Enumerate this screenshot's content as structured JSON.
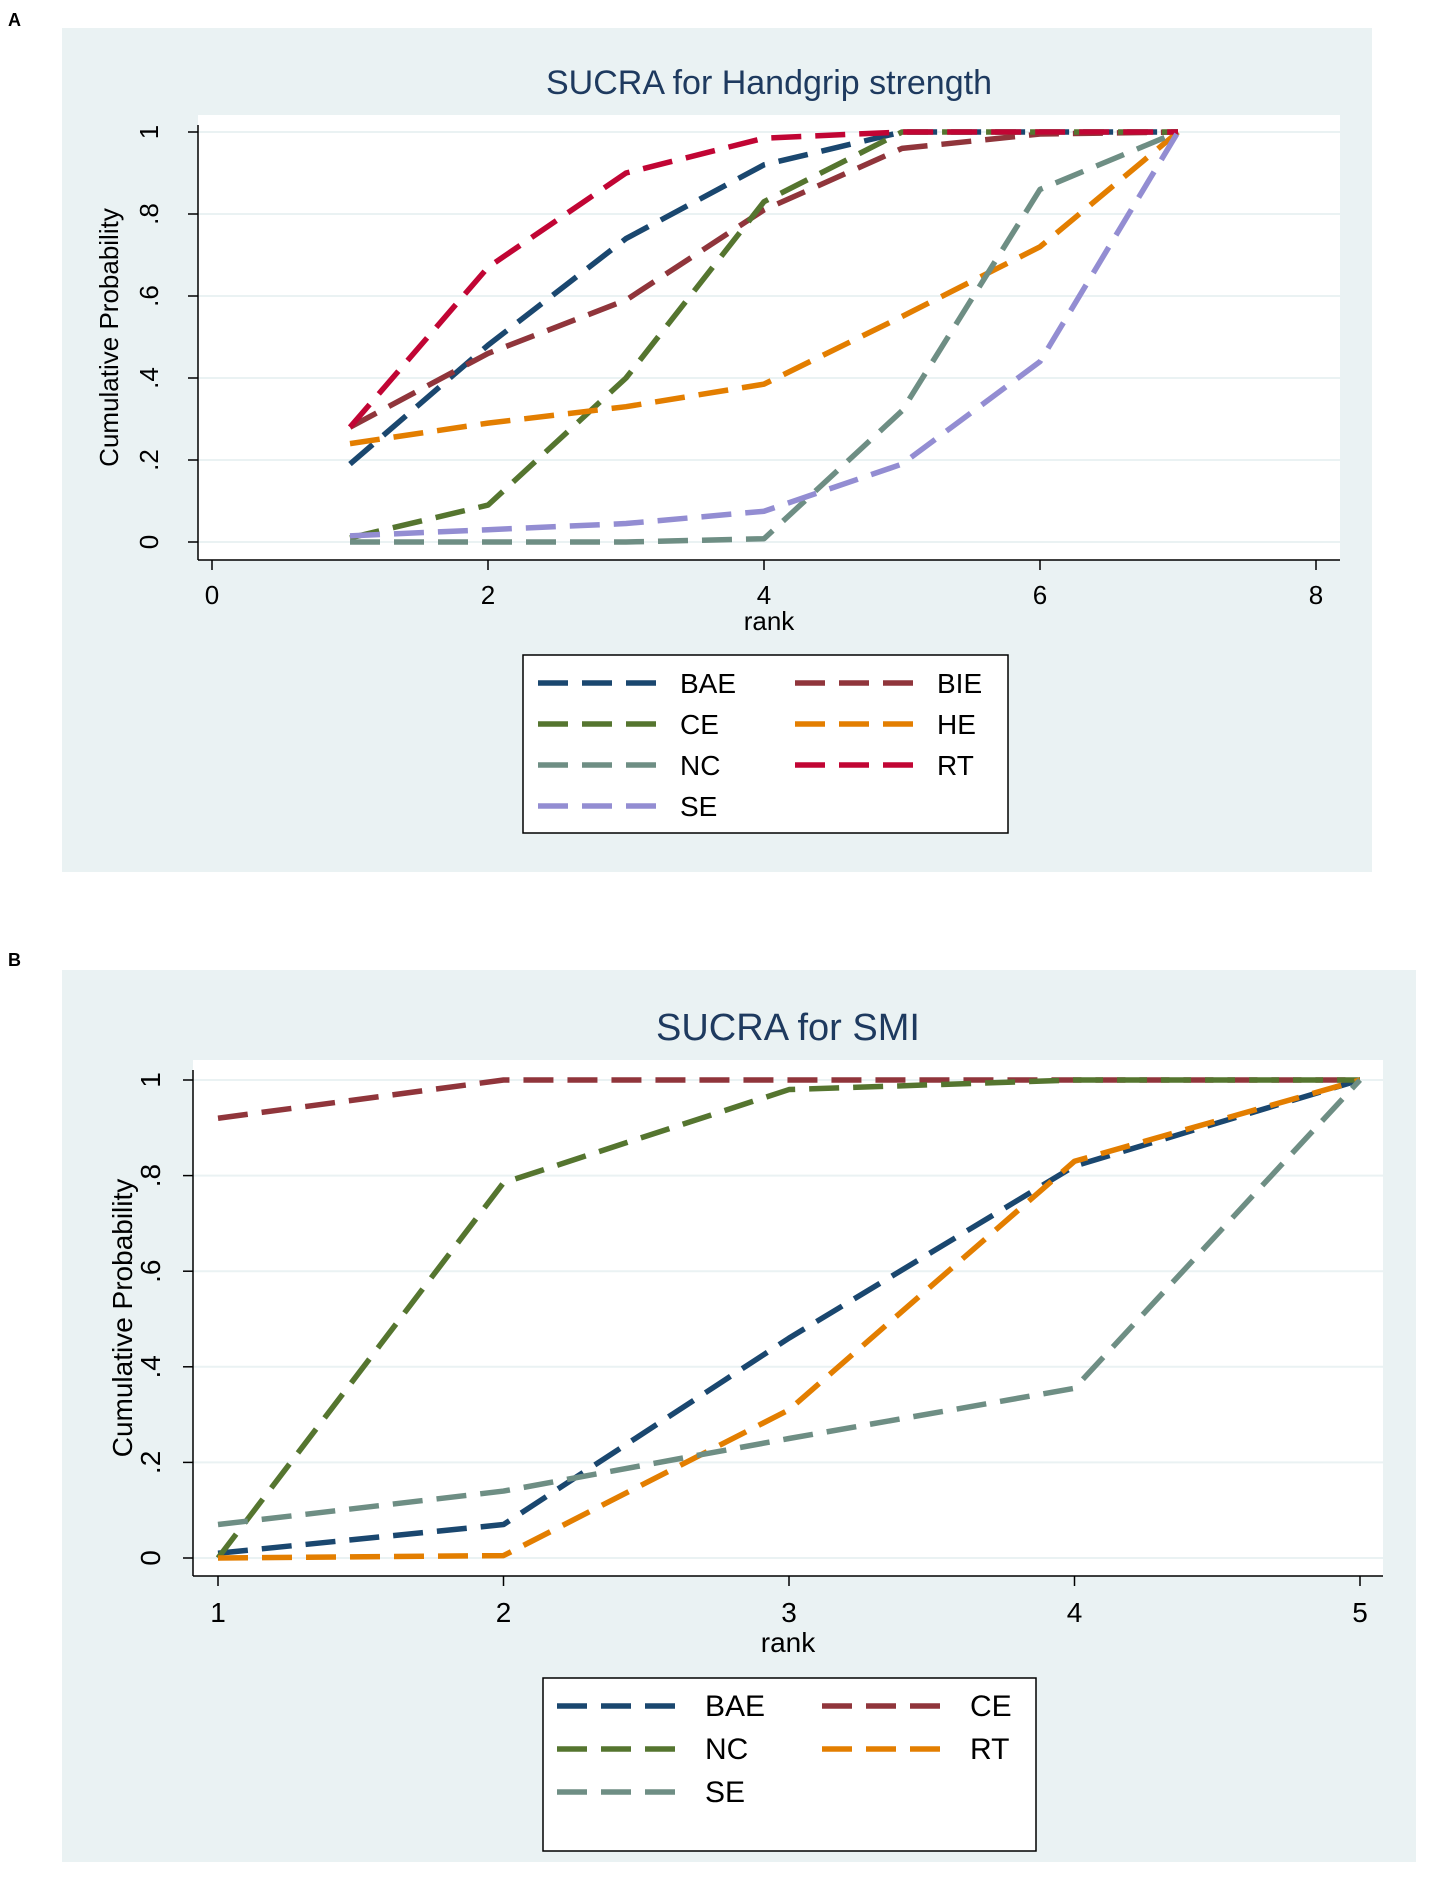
{
  "panels": [
    {
      "letter": "A"
    },
    {
      "letter": "B"
    }
  ],
  "chart_data": [
    {
      "type": "line",
      "title": "SUCRA for Handgrip strength",
      "xlabel": "rank",
      "ylabel": "Cumulative Probability",
      "xlim": [
        0,
        8
      ],
      "ylim": [
        0,
        1
      ],
      "xticks": [
        0,
        2,
        4,
        6,
        8
      ],
      "xtick_labels": [
        "0",
        "2",
        "4",
        "6",
        "8"
      ],
      "yticks": [
        0,
        0.2,
        0.4,
        0.6,
        0.8,
        1
      ],
      "ytick_labels": [
        "0",
        ".2",
        ".4",
        ".6",
        ".8",
        "1"
      ],
      "grid": true,
      "legend_position": "bottom",
      "x": [
        1,
        2,
        3,
        4,
        5,
        6,
        7
      ],
      "series": [
        {
          "name": "BAE",
          "color": "#1a476f",
          "values": [
            0.19,
            0.48,
            0.74,
            0.92,
            1.0,
            1.0,
            1.0
          ]
        },
        {
          "name": "BIE",
          "color": "#90353b",
          "values": [
            0.28,
            0.46,
            0.59,
            0.81,
            0.96,
            0.995,
            1.0
          ]
        },
        {
          "name": "CE",
          "color": "#55752f",
          "values": [
            0.01,
            0.09,
            0.4,
            0.83,
            1.0,
            1.0,
            1.0
          ]
        },
        {
          "name": "HE",
          "color": "#e37e00",
          "values": [
            0.24,
            0.29,
            0.33,
            0.385,
            0.55,
            0.72,
            1.0
          ]
        },
        {
          "name": "NC",
          "color": "#6e8e84",
          "values": [
            0.0,
            0.0,
            0.0,
            0.008,
            0.32,
            0.86,
            1.0
          ]
        },
        {
          "name": "RT",
          "color": "#c10534",
          "values": [
            0.28,
            0.67,
            0.9,
            0.985,
            1.0,
            1.0,
            1.0
          ]
        },
        {
          "name": "SE",
          "color": "#938dd2",
          "values": [
            0.015,
            0.03,
            0.045,
            0.075,
            0.19,
            0.44,
            1.0
          ]
        }
      ]
    },
    {
      "type": "line",
      "title": "SUCRA for SMI",
      "xlabel": "rank",
      "ylabel": "Cumulative Probability",
      "xlim": [
        1,
        5
      ],
      "ylim": [
        0,
        1
      ],
      "xticks": [
        1,
        2,
        3,
        4,
        5
      ],
      "xtick_labels": [
        "1",
        "2",
        "3",
        "4",
        "5"
      ],
      "yticks": [
        0,
        0.2,
        0.4,
        0.6,
        0.8,
        1
      ],
      "ytick_labels": [
        "0",
        ".2",
        ".4",
        ".6",
        ".8",
        "1"
      ],
      "grid": true,
      "legend_position": "bottom",
      "x": [
        1,
        2,
        3,
        4,
        5
      ],
      "series": [
        {
          "name": "BAE",
          "color": "#1a476f",
          "values": [
            0.01,
            0.07,
            0.46,
            0.82,
            1.0
          ]
        },
        {
          "name": "CE",
          "color": "#90353b",
          "values": [
            0.92,
            1.0,
            1.0,
            1.0,
            1.0
          ]
        },
        {
          "name": "NC",
          "color": "#55752f",
          "values": [
            0.0,
            0.785,
            0.98,
            1.0,
            1.0
          ]
        },
        {
          "name": "RT",
          "color": "#e37e00",
          "values": [
            0.0,
            0.005,
            0.31,
            0.83,
            1.0
          ]
        },
        {
          "name": "SE",
          "color": "#6e8e84",
          "values": [
            0.07,
            0.14,
            0.25,
            0.355,
            1.0
          ]
        }
      ]
    }
  ]
}
